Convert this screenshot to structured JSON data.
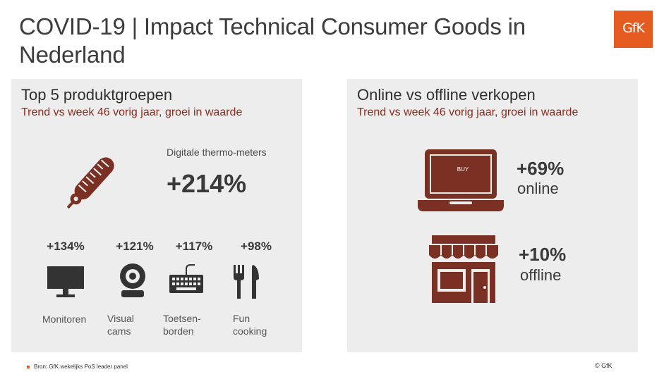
{
  "title": "COVID-19 | Impact Technical Consumer Goods in Nederland",
  "logo": "GfK",
  "left_panel": {
    "heading": "Top 5 produktgroepen",
    "subheading": "Trend vs week 46 vorig jaar, groei in waarde",
    "hero": {
      "label": "Digitale thermo-meters",
      "value": "+214%",
      "icon": "thermometer-icon"
    },
    "items": [
      {
        "value": "+134%",
        "line1": "Monitoren",
        "line2": "",
        "icon": "monitor-icon"
      },
      {
        "value": "+121%",
        "line1": "Visual",
        "line2": "cams",
        "icon": "webcam-icon"
      },
      {
        "value": "+117%",
        "line1": "Toetsen-",
        "line2": "borden",
        "icon": "keyboard-icon"
      },
      {
        "value": "+98%",
        "line1": "Fun",
        "line2": "cooking",
        "icon": "cutlery-icon"
      }
    ]
  },
  "right_panel": {
    "heading": "Online vs offline verkopen",
    "subheading": "Trend vs week 46 vorig jaar, groei in waarde",
    "online": {
      "value": "+69%",
      "label": "online",
      "screen_text": "BUY",
      "icon": "laptop-icon"
    },
    "offline": {
      "value": "+10%",
      "label": "offline",
      "icon": "store-icon"
    }
  },
  "footer": {
    "source": "Bron: GfK wekelijks PoS leader panel",
    "copyright": "© GfK"
  },
  "colors": {
    "accent": "#e55a1f",
    "icon": "#7a3023",
    "panel": "#eeeded"
  }
}
